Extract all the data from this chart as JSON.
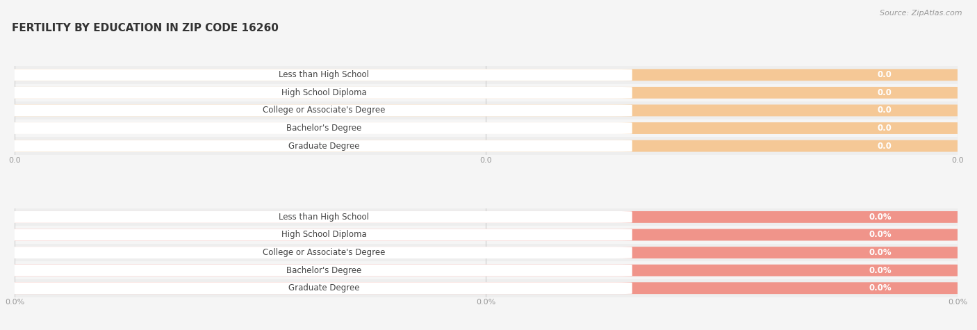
{
  "title": "FERTILITY BY EDUCATION IN ZIP CODE 16260",
  "source": "Source: ZipAtlas.com",
  "categories": [
    "Less than High School",
    "High School Diploma",
    "College or Associate's Degree",
    "Bachelor's Degree",
    "Graduate Degree"
  ],
  "top_values": [
    0.0,
    0.0,
    0.0,
    0.0,
    0.0
  ],
  "bottom_values": [
    0.0,
    0.0,
    0.0,
    0.0,
    0.0
  ],
  "top_bar_color": "#f5c896",
  "top_label_bg": "#ffffff",
  "top_text_color": "#555555",
  "top_value_color": "#ffffff",
  "bottom_bar_color": "#f0948a",
  "bottom_label_bg": "#ffffff",
  "bottom_text_color": "#555555",
  "bottom_value_color": "#ffffff",
  "bg_color": "#f5f5f5",
  "row_color_even": "#eeeeee",
  "row_color_odd": "#f5f5f5",
  "grid_color": "#cccccc",
  "tick_color": "#999999",
  "title_fontsize": 11,
  "label_fontsize": 8.5,
  "tick_fontsize": 8,
  "source_fontsize": 8
}
